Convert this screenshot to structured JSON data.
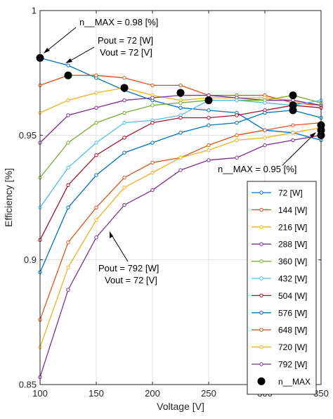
{
  "chart_data": {
    "type": "line",
    "xlabel": "Voltage [V]",
    "ylabel": "Efficiency [%]",
    "xlim": [
      100,
      350
    ],
    "ylim": [
      0.85,
      1.0
    ],
    "xticks": [
      100,
      150,
      200,
      250,
      300,
      350
    ],
    "yticks": [
      0.85,
      0.9,
      0.95,
      1.0
    ],
    "xtick_labels": [
      "100",
      "150",
      "200",
      "250",
      "300",
      "350"
    ],
    "ytick_labels": [
      "0.85",
      "0.9",
      "0.95",
      "1"
    ],
    "grid": true,
    "legend_position": "bottom-right",
    "x": [
      100,
      125,
      150,
      175,
      200,
      225,
      250,
      275,
      300,
      325,
      350
    ],
    "series": [
      {
        "name": "72 [W]",
        "color": "#0072BD",
        "values": [
          0.981,
          0.978,
          0.973,
          0.968,
          0.964,
          0.961,
          0.96,
          0.959,
          0.952,
          0.951,
          0.948
        ]
      },
      {
        "name": "144 [W]",
        "color": "#D95319",
        "values": [
          0.97,
          0.974,
          0.974,
          0.973,
          0.97,
          0.97,
          0.966,
          0.966,
          0.966,
          0.963,
          0.962
        ]
      },
      {
        "name": "216 [W]",
        "color": "#EDB120",
        "values": [
          0.959,
          0.964,
          0.967,
          0.969,
          0.966,
          0.964,
          0.965,
          0.965,
          0.965,
          0.964,
          0.962
        ]
      },
      {
        "name": "288 [W]",
        "color": "#7E2F8E",
        "values": [
          0.947,
          0.958,
          0.961,
          0.964,
          0.965,
          0.966,
          0.966,
          0.965,
          0.964,
          0.964,
          0.962
        ]
      },
      {
        "name": "360 [W]",
        "color": "#77AC30",
        "values": [
          0.933,
          0.947,
          0.955,
          0.959,
          0.962,
          0.963,
          0.964,
          0.964,
          0.964,
          0.966,
          0.963
        ]
      },
      {
        "name": "432 [W]",
        "color": "#4DBEEE",
        "values": [
          0.921,
          0.937,
          0.947,
          0.955,
          0.956,
          0.958,
          0.964,
          0.964,
          0.963,
          0.962,
          0.964
        ]
      },
      {
        "name": "504 [W]",
        "color": "#A2142F",
        "values": [
          0.908,
          0.93,
          0.942,
          0.949,
          0.955,
          0.957,
          0.957,
          0.958,
          0.96,
          0.962,
          0.961
        ]
      },
      {
        "name": "576 [W]",
        "color": "#0072BD",
        "values": [
          0.895,
          0.921,
          0.934,
          0.943,
          0.947,
          0.951,
          0.954,
          0.955,
          0.959,
          0.96,
          0.957
        ]
      },
      {
        "name": "648 [W]",
        "color": "#D95319",
        "values": [
          0.876,
          0.907,
          0.921,
          0.933,
          0.939,
          0.941,
          0.946,
          0.95,
          0.952,
          0.954,
          0.955
        ]
      },
      {
        "name": "720 [W]",
        "color": "#EDB120",
        "values": [
          0.865,
          0.897,
          0.916,
          0.929,
          0.935,
          0.941,
          0.944,
          0.948,
          0.949,
          0.951,
          0.953
        ]
      },
      {
        "name": "792 [W]",
        "color": "#7E2F8E",
        "values": [
          0.853,
          0.888,
          0.909,
          0.922,
          0.928,
          0.936,
          0.94,
          0.941,
          0.946,
          0.948,
          0.95
        ]
      }
    ],
    "max_points": {
      "name": "n__MAX",
      "color": "#000000",
      "points": [
        {
          "x": 100,
          "y": 0.981
        },
        {
          "x": 125,
          "y": 0.974
        },
        {
          "x": 175,
          "y": 0.969
        },
        {
          "x": 225,
          "y": 0.967
        },
        {
          "x": 250,
          "y": 0.964
        },
        {
          "x": 325,
          "y": 0.966
        },
        {
          "x": 325,
          "y": 0.962
        },
        {
          "x": 325,
          "y": 0.96
        },
        {
          "x": 350,
          "y": 0.954
        },
        {
          "x": 350,
          "y": 0.952
        },
        {
          "x": 350,
          "y": 0.95
        }
      ]
    },
    "annotations": [
      {
        "text": "n__MAX = 0.98 [%]"
      },
      {
        "text": "Pout = 72 [W]"
      },
      {
        "text": "Vout = 72 [V]"
      },
      {
        "text": "n__MAX = 0.95 [%]"
      },
      {
        "text": "Pout = 792 [W]"
      },
      {
        "text": "Vout = 72 [V]"
      }
    ]
  }
}
